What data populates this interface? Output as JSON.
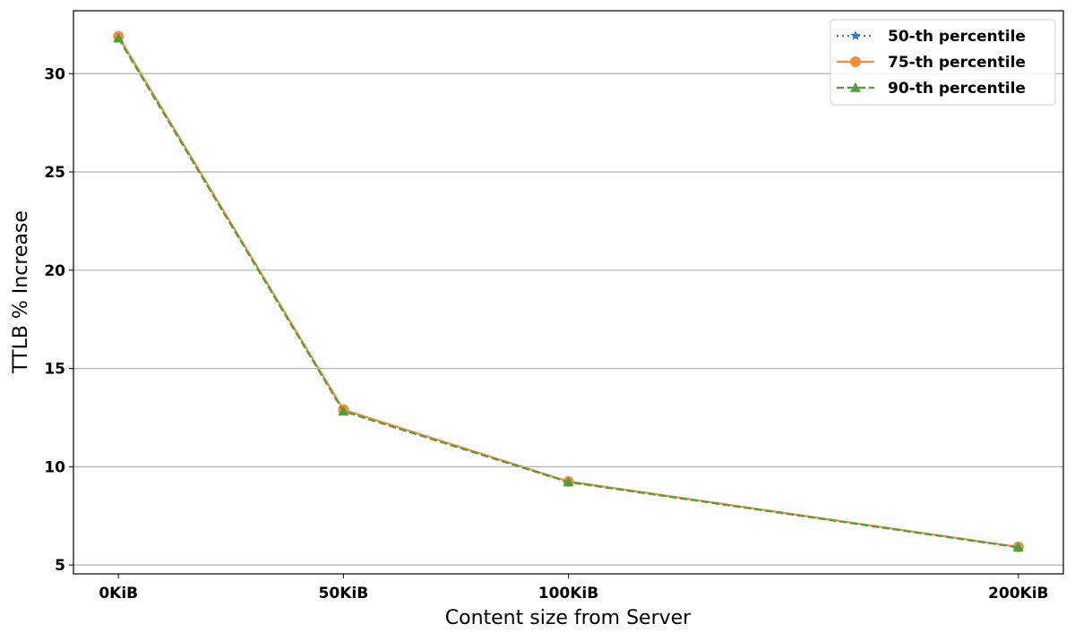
{
  "chart_data": {
    "type": "line",
    "title": "",
    "xlabel": "Content size from Server",
    "ylabel": "TTLB % Increase",
    "x": [
      0,
      50,
      100,
      200
    ],
    "x_tick_labels": [
      "0KiB",
      "50KiB",
      "100KiB",
      "200KiB"
    ],
    "xlim": [
      -10,
      210
    ],
    "ylim": [
      4.55,
      33.2
    ],
    "y_ticks": [
      5,
      10,
      15,
      20,
      25,
      30
    ],
    "grid": "horizontal",
    "legend_placement": "top-right",
    "series": [
      {
        "name": "50-th percentile",
        "values": [
          31.85,
          12.85,
          9.22,
          5.9
        ],
        "color": "#3b7dc4",
        "linestyle": "dotted",
        "marker": "star"
      },
      {
        "name": "75-th percentile",
        "values": [
          31.9,
          12.9,
          9.25,
          5.92
        ],
        "color": "#f28e3b",
        "linestyle": "solid",
        "marker": "circle"
      },
      {
        "name": "90-th percentile",
        "values": [
          31.8,
          12.82,
          9.22,
          5.9
        ],
        "color": "#4e9e3e",
        "linestyle": "dashed",
        "marker": "triangle"
      }
    ]
  }
}
